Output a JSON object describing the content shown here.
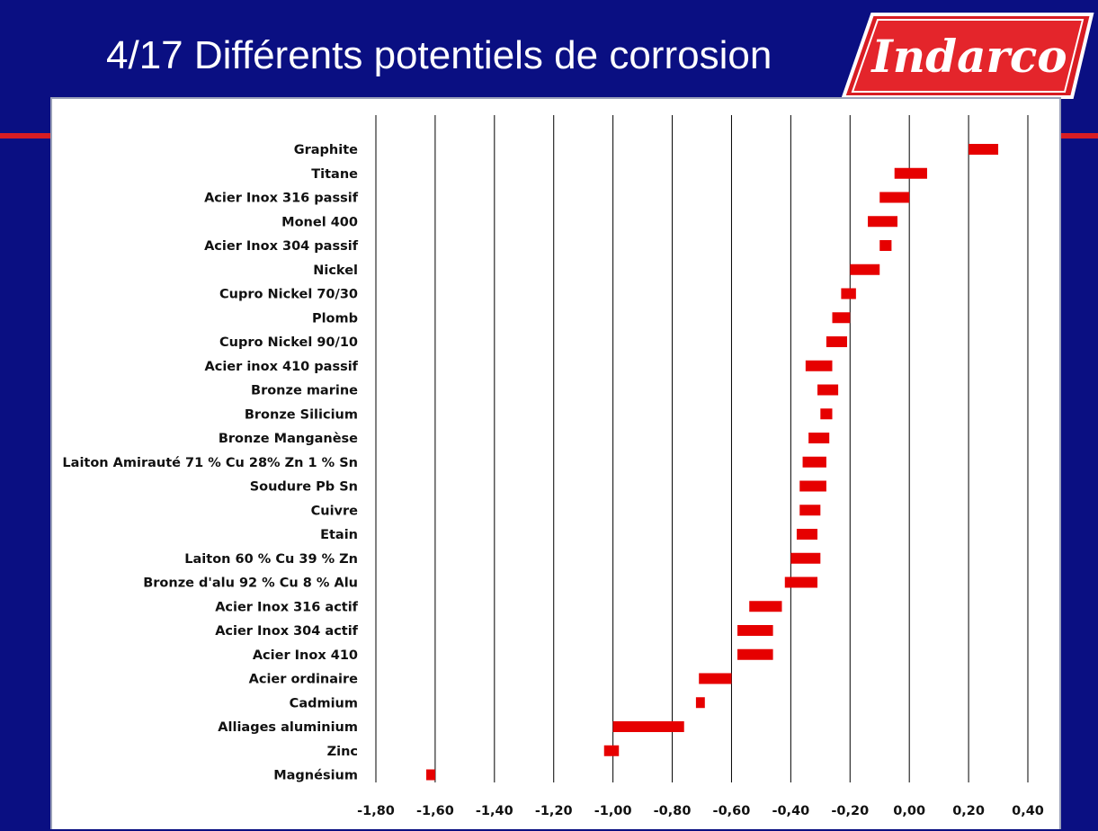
{
  "slide": {
    "title": "4/17 Différents potentiels de corrosion",
    "logo_text": "Indarco"
  },
  "colors": {
    "background": "#0a0f82",
    "accent_red": "#d81d23",
    "bar_red": "#e60000",
    "panel": "#ffffff"
  },
  "chart_data": {
    "type": "bar",
    "orientation": "horizontal-range",
    "title": "",
    "xlabel": "",
    "ylabel": "",
    "xlim": [
      -1.8,
      0.4
    ],
    "grid": true,
    "x_ticks": [
      "-1,80",
      "-1,60",
      "-1,40",
      "-1,20",
      "-1,00",
      "-0,80",
      "-0,60",
      "-0,40",
      "-0,20",
      "0,00",
      "0,20",
      "0,40"
    ],
    "x_tick_values": [
      -1.8,
      -1.6,
      -1.4,
      -1.2,
      -1.0,
      -0.8,
      -0.6,
      -0.4,
      -0.2,
      0.0,
      0.2,
      0.4
    ],
    "categories": [
      "Graphite",
      "Titane",
      "Acier Inox 316 passif",
      "Monel 400",
      "Acier Inox 304 passif",
      "Nickel",
      "Cupro Nickel 70/30",
      "Plomb",
      "Cupro Nickel 90/10",
      "Acier inox 410 passif",
      "Bronze marine",
      "Bronze Silicium",
      "Bronze Manganèse",
      "Laiton Amirauté 71 % Cu 28% Zn 1 % Sn",
      "Soudure Pb Sn",
      "Cuivre",
      "Etain",
      "Laiton 60 % Cu 39 % Zn",
      "Bronze d'alu 92 % Cu 8 % Alu",
      "Acier Inox 316 actif",
      "Acier Inox 304 actif",
      "Acier Inox 410",
      "Acier ordinaire",
      "Cadmium",
      "Alliages aluminium",
      "Zinc",
      "Magnésium"
    ],
    "ranges": [
      [
        0.2,
        0.3
      ],
      [
        -0.05,
        0.06
      ],
      [
        -0.1,
        0.0
      ],
      [
        -0.14,
        -0.04
      ],
      [
        -0.1,
        -0.06
      ],
      [
        -0.2,
        -0.1
      ],
      [
        -0.23,
        -0.18
      ],
      [
        -0.26,
        -0.2
      ],
      [
        -0.28,
        -0.21
      ],
      [
        -0.35,
        -0.26
      ],
      [
        -0.31,
        -0.24
      ],
      [
        -0.3,
        -0.26
      ],
      [
        -0.34,
        -0.27
      ],
      [
        -0.36,
        -0.28
      ],
      [
        -0.37,
        -0.28
      ],
      [
        -0.37,
        -0.3
      ],
      [
        -0.38,
        -0.31
      ],
      [
        -0.4,
        -0.3
      ],
      [
        -0.42,
        -0.31
      ],
      [
        -0.54,
        -0.43
      ],
      [
        -0.58,
        -0.46
      ],
      [
        -0.58,
        -0.46
      ],
      [
        -0.71,
        -0.6
      ],
      [
        -0.72,
        -0.69
      ],
      [
        -1.0,
        -0.76
      ],
      [
        -1.03,
        -0.98
      ],
      [
        -1.63,
        -1.6
      ]
    ]
  }
}
